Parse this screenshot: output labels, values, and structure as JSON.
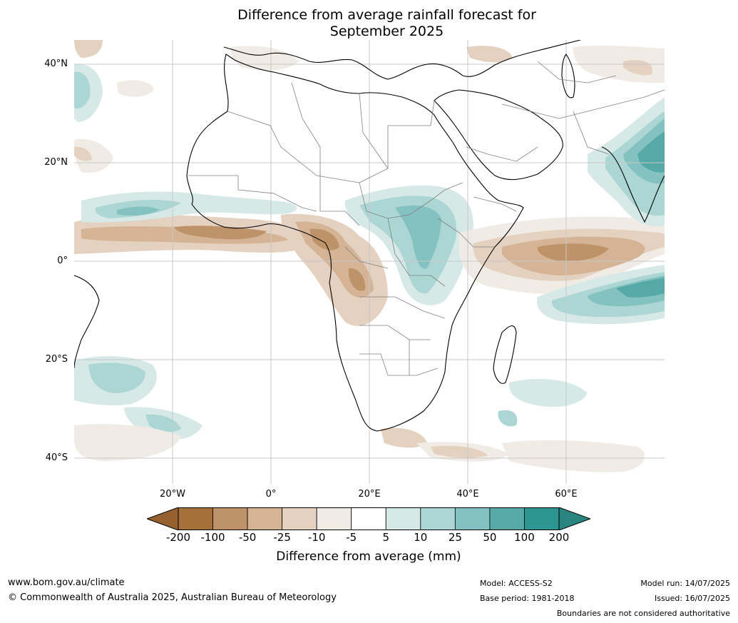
{
  "title_line1": "Difference from average rainfall forecast for",
  "title_line2": "September 2025",
  "lat_labels": [
    "40°N",
    "20°N",
    "0°",
    "20°S",
    "40°S"
  ],
  "lon_labels": [
    "20°W",
    "0°",
    "20°E",
    "40°E",
    "60°E"
  ],
  "legend": {
    "title": "Difference from average (mm)",
    "ticks": [
      "-200",
      "-100",
      "-50",
      "-25",
      "-10",
      "-5",
      "5",
      "10",
      "25",
      "50",
      "100",
      "200"
    ],
    "colors": [
      "#a6703a",
      "#bf936a",
      "#d5b495",
      "#e4d1bf",
      "#f1ebe6",
      "#ffffff",
      "#d6e9e7",
      "#abd6d4",
      "#84c2c1",
      "#57a9a7",
      "#2e9690"
    ],
    "low_extend_color": "#96612f",
    "high_extend_color": "#2a8580"
  },
  "footer": {
    "website": "www.bom.gov.au/climate",
    "copyright": "© Commonwealth of Australia 2025, Australian Bureau of Meteorology",
    "model": "Model: ACCESS-S2",
    "base_period": "Base period: 1981-2018",
    "model_run": "Model run: 14/07/2025",
    "issued": "Issued: 16/07/2025",
    "disclaimer": "Boundaries are not considered authoritative"
  }
}
